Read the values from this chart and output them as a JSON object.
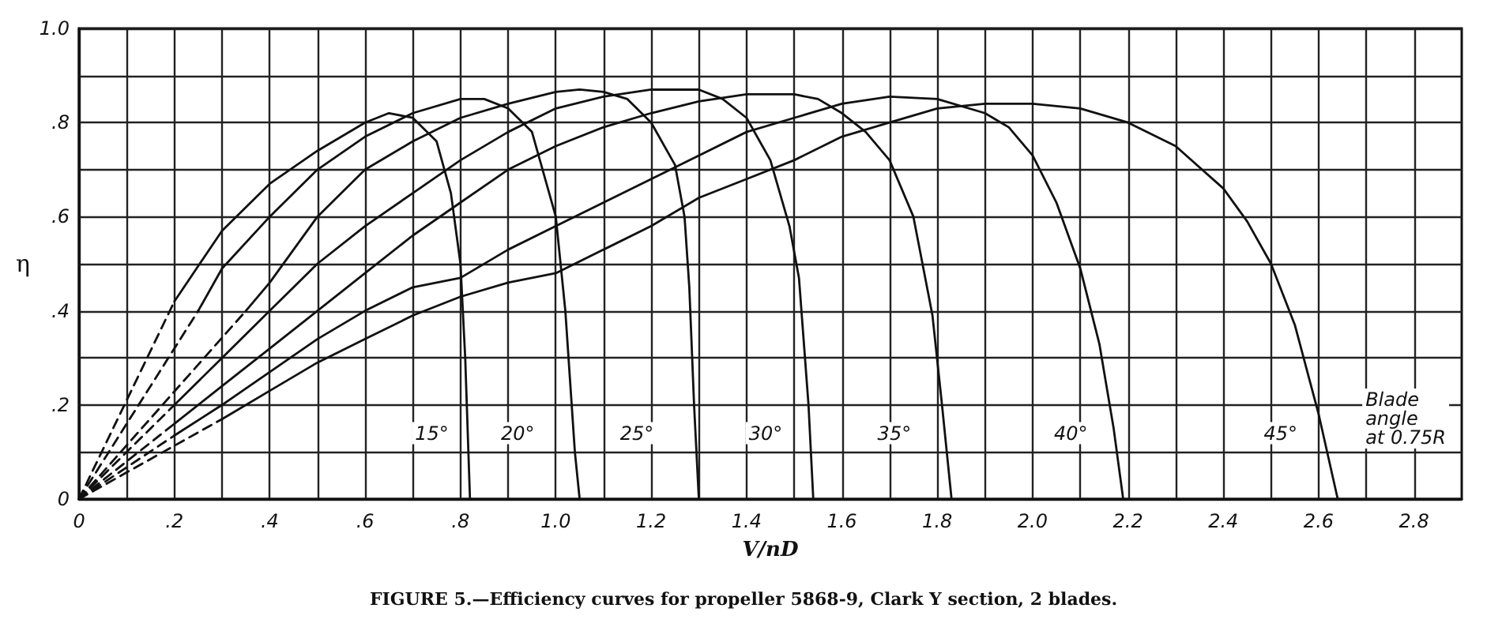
{
  "chart_data": {
    "type": "line",
    "xlabel": "V/nD",
    "ylabel": "η",
    "xlim": [
      0,
      2.9
    ],
    "ylim": [
      0,
      1.0
    ],
    "xticks": [
      {
        "value": 0,
        "label": "0"
      },
      {
        "value": 0.1,
        "label": null
      },
      {
        "value": 0.2,
        "label": ".2"
      },
      {
        "value": 0.3,
        "label": null
      },
      {
        "value": 0.4,
        "label": ".4"
      },
      {
        "value": 0.5,
        "label": null
      },
      {
        "value": 0.6,
        "label": ".6"
      },
      {
        "value": 0.7,
        "label": null
      },
      {
        "value": 0.8,
        "label": ".8"
      },
      {
        "value": 0.9,
        "label": null
      },
      {
        "value": 1.0,
        "label": "1.0"
      },
      {
        "value": 1.1,
        "label": null
      },
      {
        "value": 1.2,
        "label": "1.2"
      },
      {
        "value": 1.3,
        "label": null
      },
      {
        "value": 1.4,
        "label": "1.4"
      },
      {
        "value": 1.5,
        "label": null
      },
      {
        "value": 1.6,
        "label": "1.6"
      },
      {
        "value": 1.7,
        "label": null
      },
      {
        "value": 1.8,
        "label": "1.8"
      },
      {
        "value": 1.9,
        "label": null
      },
      {
        "value": 2.0,
        "label": "2.0"
      },
      {
        "value": 2.1,
        "label": null
      },
      {
        "value": 2.2,
        "label": "2.2"
      },
      {
        "value": 2.3,
        "label": null
      },
      {
        "value": 2.4,
        "label": "2.4"
      },
      {
        "value": 2.5,
        "label": null
      },
      {
        "value": 2.6,
        "label": "2.6"
      },
      {
        "value": 2.7,
        "label": null
      },
      {
        "value": 2.8,
        "label": "2.8"
      }
    ],
    "yticks": [
      {
        "value": 0,
        "label": "0"
      },
      {
        "value": 0.1,
        "label": null
      },
      {
        "value": 0.2,
        "label": ".2"
      },
      {
        "value": 0.3,
        "label": null
      },
      {
        "value": 0.4,
        "label": ".4"
      },
      {
        "value": 0.5,
        "label": null
      },
      {
        "value": 0.6,
        "label": ".6"
      },
      {
        "value": 0.7,
        "label": null
      },
      {
        "value": 0.8,
        "label": ".8"
      },
      {
        "value": 0.9,
        "label": null
      },
      {
        "value": 1.0,
        "label": "1.0"
      }
    ],
    "grid": true,
    "marker": "none",
    "series": [
      {
        "color": "#111111",
        "line_style": "dashed",
        "x": [
          0,
          0.2
        ],
        "values": [
          0,
          0.42
        ]
      },
      {
        "color": "#111111",
        "line_style": "solid",
        "x": [
          0.2,
          0.3,
          0.4,
          0.5,
          0.6,
          0.65,
          0.7,
          0.75,
          0.78,
          0.8,
          0.81,
          0.82
        ],
        "values": [
          0.42,
          0.57,
          0.67,
          0.74,
          0.8,
          0.82,
          0.81,
          0.76,
          0.65,
          0.5,
          0.3,
          0
        ]
      },
      {
        "color": "#111111",
        "line_style": "dashed",
        "x": [
          0,
          0.25
        ],
        "values": [
          0,
          0.4
        ]
      },
      {
        "color": "#111111",
        "line_style": "solid",
        "x": [
          0.25,
          0.3,
          0.4,
          0.5,
          0.6,
          0.7,
          0.8,
          0.85,
          0.9,
          0.95,
          1.0,
          1.02,
          1.04,
          1.05
        ],
        "values": [
          0.4,
          0.49,
          0.6,
          0.7,
          0.77,
          0.82,
          0.85,
          0.85,
          0.83,
          0.78,
          0.6,
          0.4,
          0.1,
          0
        ]
      },
      {
        "color": "#111111",
        "line_style": "dashed",
        "x": [
          0,
          0.35
        ],
        "values": [
          0,
          0.4
        ]
      },
      {
        "color": "#111111",
        "line_style": "solid",
        "x": [
          0.35,
          0.4,
          0.5,
          0.6,
          0.7,
          0.8,
          0.9,
          1.0,
          1.05,
          1.1,
          1.15,
          1.2,
          1.25,
          1.27,
          1.28,
          1.29,
          1.3
        ],
        "values": [
          0.4,
          0.46,
          0.6,
          0.7,
          0.76,
          0.81,
          0.84,
          0.865,
          0.87,
          0.865,
          0.85,
          0.8,
          0.71,
          0.6,
          0.45,
          0.2,
          0
        ]
      },
      {
        "color": "#111111",
        "line_style": "dashed",
        "x": [
          0,
          0.2
        ],
        "values": [
          0,
          0.2
        ]
      },
      {
        "color": "#111111",
        "line_style": "solid",
        "x": [
          0.2,
          0.3,
          0.4,
          0.5,
          0.6,
          0.7,
          0.8,
          0.9,
          1.0,
          1.1,
          1.2,
          1.3,
          1.35,
          1.4,
          1.45,
          1.49,
          1.51,
          1.53,
          1.54
        ],
        "values": [
          0.2,
          0.3,
          0.4,
          0.5,
          0.58,
          0.65,
          0.72,
          0.78,
          0.83,
          0.855,
          0.87,
          0.87,
          0.85,
          0.81,
          0.72,
          0.58,
          0.47,
          0.2,
          0
        ]
      },
      {
        "color": "#111111",
        "line_style": "dashed",
        "x": [
          0,
          0.2
        ],
        "values": [
          0,
          0.16
        ]
      },
      {
        "color": "#111111",
        "line_style": "solid",
        "x": [
          0.2,
          0.3,
          0.4,
          0.5,
          0.6,
          0.7,
          0.8,
          0.9,
          1.0,
          1.1,
          1.2,
          1.3,
          1.4,
          1.5,
          1.55,
          1.6,
          1.65,
          1.7,
          1.75,
          1.79,
          1.81,
          1.83
        ],
        "values": [
          0.16,
          0.24,
          0.32,
          0.4,
          0.48,
          0.56,
          0.63,
          0.7,
          0.75,
          0.79,
          0.82,
          0.845,
          0.86,
          0.86,
          0.85,
          0.82,
          0.78,
          0.72,
          0.6,
          0.39,
          0.2,
          0
        ]
      },
      {
        "color": "#111111",
        "line_style": "dashed",
        "x": [
          0,
          0.2
        ],
        "values": [
          0,
          0.135
        ]
      },
      {
        "color": "#111111",
        "line_style": "solid",
        "x": [
          0.2,
          0.3,
          0.4,
          0.5,
          0.6,
          0.7,
          0.8,
          0.9,
          1.0,
          1.1,
          1.2,
          1.3,
          1.4,
          1.5,
          1.6,
          1.7,
          1.8,
          1.9,
          1.95,
          2.0,
          2.05,
          2.1,
          2.14,
          2.17,
          2.19
        ],
        "values": [
          0.135,
          0.2,
          0.27,
          0.34,
          0.4,
          0.45,
          0.47,
          0.53,
          0.58,
          0.63,
          0.68,
          0.73,
          0.78,
          0.81,
          0.84,
          0.855,
          0.85,
          0.82,
          0.79,
          0.73,
          0.63,
          0.49,
          0.33,
          0.15,
          0
        ]
      },
      {
        "color": "#111111",
        "line_style": "dashed",
        "x": [
          0,
          0.3
        ],
        "values": [
          0,
          0.17
        ]
      },
      {
        "color": "#111111",
        "line_style": "solid",
        "x": [
          0.3,
          0.4,
          0.5,
          0.6,
          0.7,
          0.8,
          0.9,
          1.0,
          1.1,
          1.2,
          1.3,
          1.4,
          1.5,
          1.6,
          1.7,
          1.8,
          1.9,
          2.0,
          2.1,
          2.2,
          2.3,
          2.4,
          2.45,
          2.5,
          2.55,
          2.6,
          2.64
        ],
        "values": [
          0.17,
          0.23,
          0.29,
          0.34,
          0.39,
          0.43,
          0.46,
          0.48,
          0.53,
          0.58,
          0.64,
          0.68,
          0.72,
          0.77,
          0.8,
          0.83,
          0.84,
          0.84,
          0.83,
          0.8,
          0.75,
          0.66,
          0.59,
          0.5,
          0.37,
          0.18,
          0
        ]
      }
    ],
    "annotations": [
      {
        "text": "15°",
        "x": 0.74,
        "y": 0.14
      },
      {
        "text": "20°",
        "x": 0.92,
        "y": 0.14
      },
      {
        "text": "25°",
        "x": 1.17,
        "y": 0.14
      },
      {
        "text": "30°",
        "x": 1.44,
        "y": 0.14
      },
      {
        "text": "35°",
        "x": 1.71,
        "y": 0.14
      },
      {
        "text": "40°",
        "x": 2.08,
        "y": 0.14
      },
      {
        "text": "45°",
        "x": 2.52,
        "y": 0.14
      },
      "Blade\nangle\nat 0.75R",
      "FIGURE 5.—Efficiency curves for propeller 5868-9, Clark Y section, 2 blades."
    ]
  }
}
